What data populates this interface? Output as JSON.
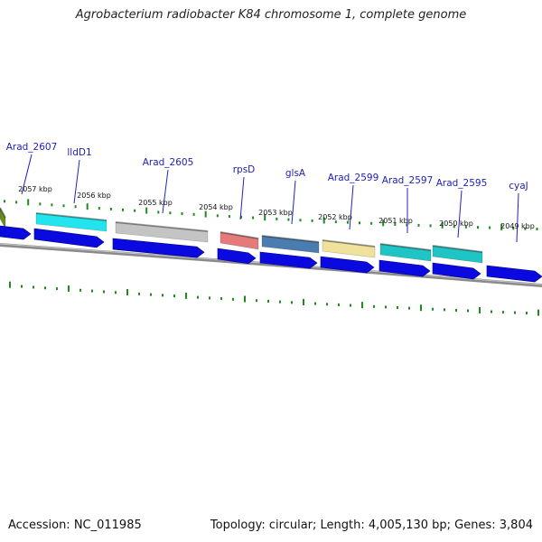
{
  "title": "Agrobacterium radiobacter K84 chromosome 1, complete genome",
  "footer": {
    "accession": "Accession: NC_011985",
    "summary": "Topology: circular; Length: 4,005,130 bp; Genes: 3,804"
  },
  "colors": {
    "backbone": "#8a8a8a",
    "tick": "#1f8a1f",
    "cds_arrow": "#0a0ae0",
    "label": "#2020b8"
  },
  "ticks_kbp": [
    "2057 kbp",
    "2056 kbp",
    "2055 kbp",
    "2054 kbp",
    "2053 kbp",
    "2052 kbp",
    "2051 kbp",
    "2050 kbp",
    "2049 kbp"
  ],
  "gene_labels": [
    "Arad_2607",
    "lldD1",
    "Arad_2605",
    "rpsD",
    "glsA",
    "Arad_2599",
    "Arad_2597",
    "Arad_2595",
    "cyaJ"
  ],
  "features": [
    {
      "color": "#6b8e23"
    },
    {
      "color": "#22e4ec"
    },
    {
      "color": "#c4c4c4"
    },
    {
      "color": "#e57a7a"
    },
    {
      "color": "#4a7cb0"
    },
    {
      "color": "#f0e29a"
    },
    {
      "color": "#1fc4c4"
    },
    {
      "color": "#1fc4c4"
    }
  ]
}
